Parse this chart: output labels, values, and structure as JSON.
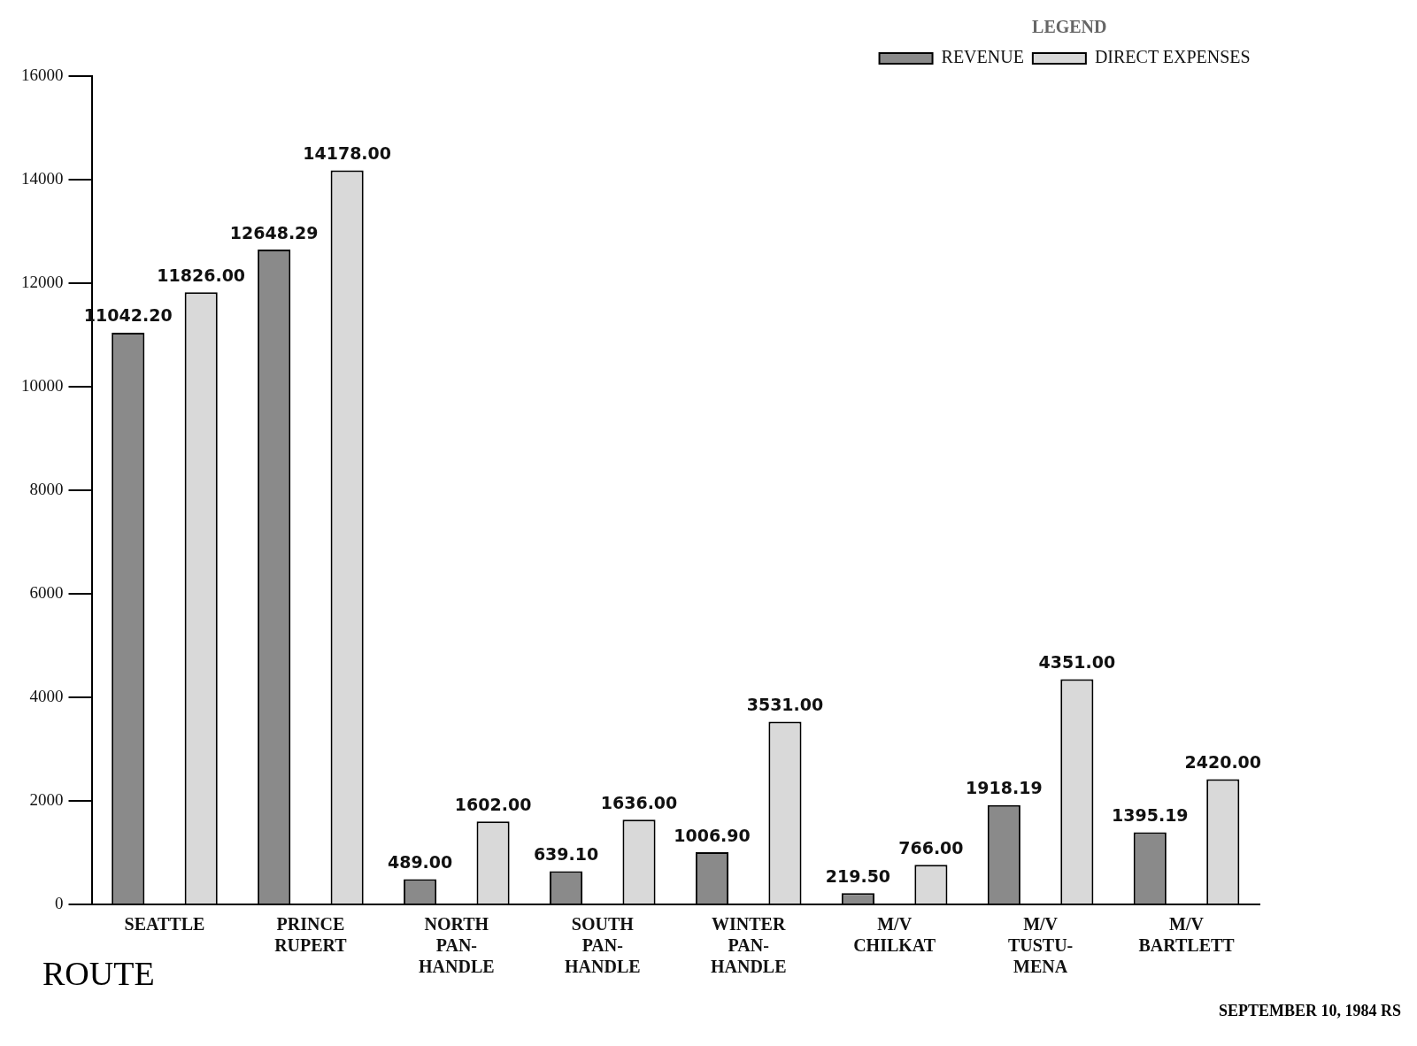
{
  "chart_data": {
    "type": "bar",
    "xlabel": "ROUTE",
    "legend_title": "LEGEND",
    "legend": "top right",
    "grid": false,
    "categories": [
      "SEATTLE",
      "PRINCE\nRUPERT",
      "NORTH\nPAN-\nHANDLE",
      "SOUTH\nPAN-\nHANDLE",
      "WINTER\nPAN-\nHANDLE",
      "M/V\nCHILKAT",
      "M/V\nTUSTU-\nMENA",
      "M/V\nBARTLETT"
    ],
    "series": [
      {
        "name": "REVENUE",
        "color": "#8a8a8a",
        "values": [
          11042.2,
          12648.29,
          489,
          639.1,
          1006.9,
          219.5,
          1918.19,
          1395.19
        ],
        "value_labels": [
          "11042.20",
          "12648.29",
          "489.00",
          "639.10",
          "1006.90",
          "219.50",
          "1918.19",
          "1395.19"
        ]
      },
      {
        "name": "DIRECT EXPENSES",
        "color": "#d9d9d9",
        "values": [
          11826,
          14178,
          1602,
          1636,
          3531,
          766,
          4351,
          2420
        ],
        "value_labels": [
          "11826.00",
          "14178.00",
          "1602.00",
          "1636.00",
          "3531.00",
          "766.00",
          "4351.00",
          "2420.00"
        ]
      }
    ],
    "ylim": [
      0,
      16000
    ],
    "yticks": [
      0,
      2000,
      4000,
      6000,
      8000,
      10000,
      12000,
      14000,
      16000
    ],
    "annotations": [
      "SEPTEMBER 10, 1984 RS"
    ]
  }
}
